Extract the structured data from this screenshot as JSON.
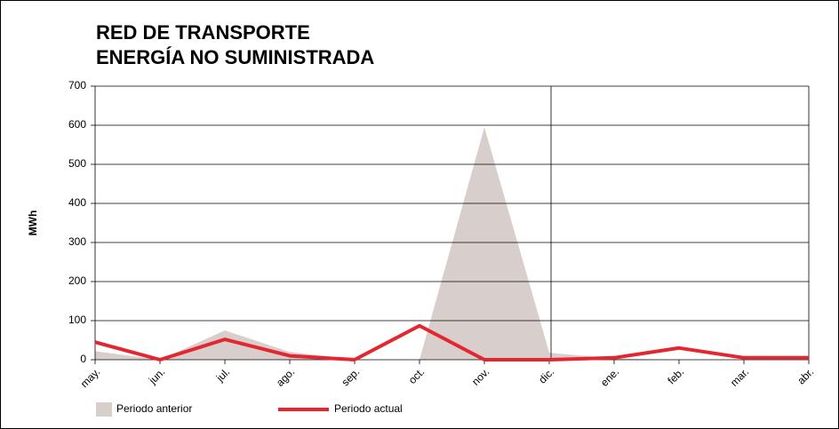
{
  "chart_data": {
    "type": "line",
    "title": [
      "RED DE TRANSPORTE",
      "ENERGÍA NO SUMINISTRADA"
    ],
    "y_label": "MWh",
    "categories": [
      "may.",
      "jun.",
      "jul.",
      "ago.",
      "sep.",
      "oct.",
      "nov.",
      "dic.",
      "ene.",
      "feb.",
      "mar.",
      "abr."
    ],
    "series": [
      {
        "name": "Periodo anterior",
        "kind": "area",
        "color": "#d8cfcd",
        "values": [
          22,
          0,
          75,
          20,
          0,
          0,
          595,
          18,
          3,
          0,
          0,
          0
        ]
      },
      {
        "name": "Periodo actual",
        "kind": "line",
        "color": "#e3262f",
        "values": [
          45,
          0,
          52,
          10,
          0,
          87,
          0,
          0,
          5,
          30,
          5,
          5
        ]
      }
    ],
    "ylim": [
      0,
      700
    ],
    "yticks": [
      0,
      100,
      200,
      300,
      400,
      500,
      600,
      700
    ],
    "grid": true
  }
}
